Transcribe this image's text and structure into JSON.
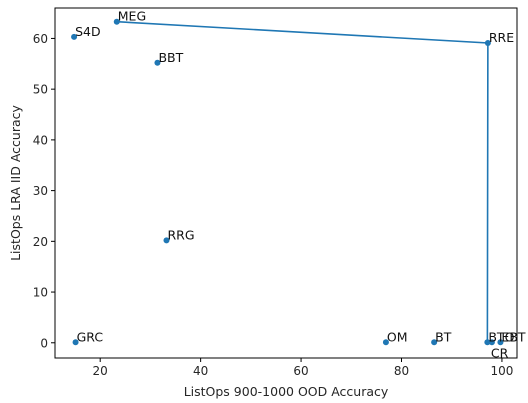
{
  "chart_data": {
    "type": "scatter",
    "title": "",
    "xlabel": "ListOps 900-1000 OOD Accuracy",
    "ylabel": "ListOps LRA IID Accuracy",
    "xlim": [
      11,
      103
    ],
    "ylim": [
      -3,
      66
    ],
    "xticks": [
      20,
      40,
      60,
      80,
      100
    ],
    "yticks": [
      0,
      10,
      20,
      30,
      40,
      50,
      60
    ],
    "grid": false,
    "point_color": "#1f77b4",
    "line_color": "#1f77b4",
    "points": [
      {
        "label": "S4D",
        "x": 14.8,
        "y": 60.3
      },
      {
        "label": "MEG",
        "x": 23.3,
        "y": 63.3
      },
      {
        "label": "BBT",
        "x": 31.4,
        "y": 55.2
      },
      {
        "label": "RRE",
        "x": 97.2,
        "y": 59.1
      },
      {
        "label": "RRG",
        "x": 33.2,
        "y": 20.2
      },
      {
        "label": "GRC",
        "x": 15.1,
        "y": 0.1
      },
      {
        "label": "OM",
        "x": 76.9,
        "y": 0.1
      },
      {
        "label": "BT",
        "x": 86.5,
        "y": 0.1
      },
      {
        "label": "BTO",
        "x": 97.1,
        "y": 0.1
      },
      {
        "label": "CR",
        "x": 98.0,
        "y": 0.1
      },
      {
        "label": "EBT",
        "x": 99.7,
        "y": 0.1
      }
    ],
    "frontier": [
      "MEG",
      "RRE",
      "BTO"
    ]
  }
}
